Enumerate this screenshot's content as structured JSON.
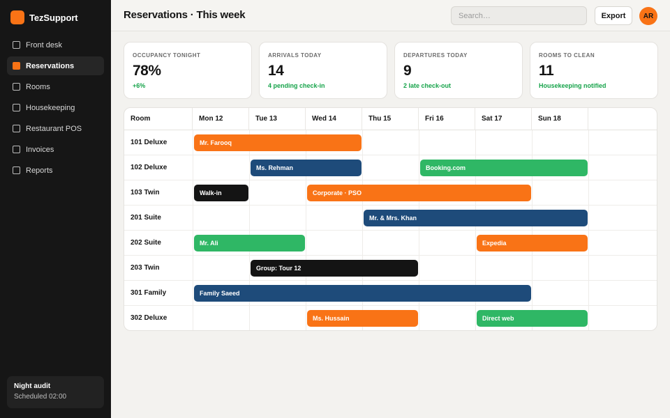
{
  "app": {
    "name": "TezSupport"
  },
  "sidebar": {
    "items": [
      {
        "label": "Front desk",
        "active": false
      },
      {
        "label": "Reservations",
        "active": true
      },
      {
        "label": "Rooms",
        "active": false
      },
      {
        "label": "Housekeeping",
        "active": false
      },
      {
        "label": "Restaurant POS",
        "active": false
      },
      {
        "label": "Invoices",
        "active": false
      },
      {
        "label": "Reports",
        "active": false
      }
    ],
    "audit": {
      "title": "Night audit",
      "subtitle": "Scheduled 02:00"
    }
  },
  "header": {
    "title": "Reservations · This week",
    "search_placeholder": "Search…",
    "export_label": "Export",
    "avatar_initials": "AR"
  },
  "stats": [
    {
      "label": "OCCUPANCY TONIGHT",
      "value": "78%",
      "note": "+6%"
    },
    {
      "label": "ARRIVALS TODAY",
      "value": "14",
      "note": "4 pending check-in"
    },
    {
      "label": "DEPARTURES TODAY",
      "value": "9",
      "note": "2 late check-out"
    },
    {
      "label": "ROOMS TO CLEAN",
      "value": "11",
      "note": "Housekeeping notified"
    }
  ],
  "calendar": {
    "room_header": "Room",
    "days": [
      "Mon 12",
      "Tue 13",
      "Wed 14",
      "Thu 15",
      "Fri 16",
      "Sat 17",
      "Sun 18"
    ],
    "rooms": [
      {
        "name": "101 Deluxe",
        "bookings": [
          {
            "guest": "Mr. Farooq",
            "start": 0,
            "nights": 3,
            "color": "orange"
          }
        ]
      },
      {
        "name": "102 Deluxe",
        "bookings": [
          {
            "guest": "Ms. Rehman",
            "start": 1,
            "nights": 2,
            "color": "blue"
          },
          {
            "guest": "Booking.com",
            "start": 4,
            "nights": 3,
            "color": "green"
          }
        ]
      },
      {
        "name": "103 Twin",
        "bookings": [
          {
            "guest": "Walk-in",
            "start": 0,
            "nights": 1,
            "color": "black"
          },
          {
            "guest": "Corporate · PSO",
            "start": 2,
            "nights": 4,
            "color": "orange"
          }
        ]
      },
      {
        "name": "201 Suite",
        "bookings": [
          {
            "guest": "Mr. & Mrs. Khan",
            "start": 3,
            "nights": 4,
            "color": "blue"
          }
        ]
      },
      {
        "name": "202 Suite",
        "bookings": [
          {
            "guest": "Mr. Ali",
            "start": 0,
            "nights": 2,
            "color": "green"
          },
          {
            "guest": "Expedia",
            "start": 5,
            "nights": 2,
            "color": "orange"
          }
        ]
      },
      {
        "name": "203 Twin",
        "bookings": [
          {
            "guest": "Group: Tour 12",
            "start": 1,
            "nights": 3,
            "color": "black"
          }
        ]
      },
      {
        "name": "301 Family",
        "bookings": [
          {
            "guest": "Family Saeed",
            "start": 0,
            "nights": 6,
            "color": "blue"
          }
        ]
      },
      {
        "name": "302 Deluxe",
        "bookings": [
          {
            "guest": "Ms. Hussain",
            "start": 2,
            "nights": 2,
            "color": "orange"
          },
          {
            "guest": "Direct web",
            "start": 5,
            "nights": 2,
            "color": "green"
          }
        ]
      }
    ]
  },
  "colors": {
    "orange": "#f97316",
    "blue": "#1e4b7a",
    "green": "#2fb765",
    "black": "#141414",
    "accent_text": "#16a34a"
  }
}
